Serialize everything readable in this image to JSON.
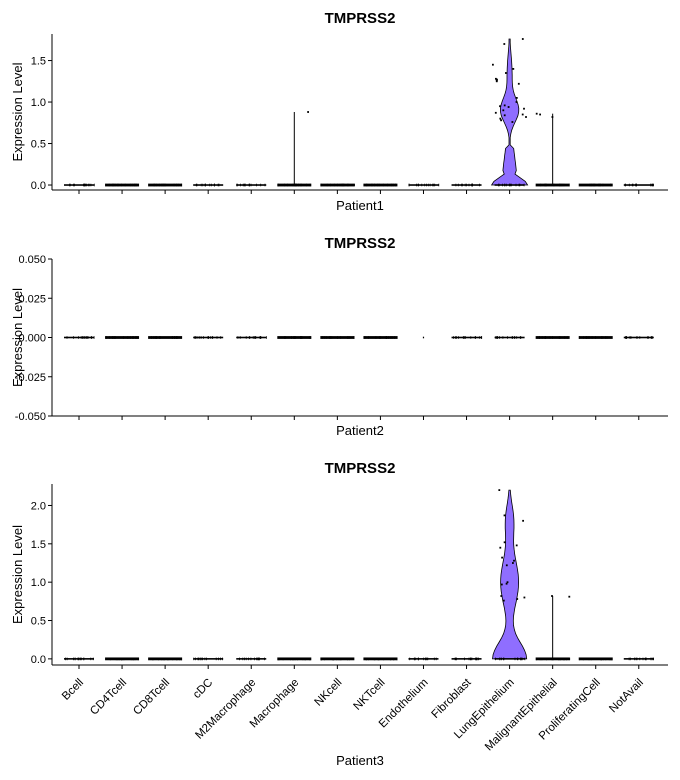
{
  "chart_data": {
    "type": "violin",
    "categories": [
      "Bcell",
      "CD4Tcell",
      "CD8Tcell",
      "cDC",
      "M2Macrophage",
      "Macrophage",
      "NKcell",
      "NKTcell",
      "Endothelium",
      "Fibroblast",
      "LungEpithelium",
      "MalignantEpithelial",
      "ProliferatingCell",
      "NotAvail"
    ],
    "fill_color": "#8F6EFF",
    "panels": [
      {
        "title": "TMPRSS2",
        "xlabel": "Patient1",
        "ylabel": "Expression Level",
        "ylim": [
          -0.06,
          1.82
        ],
        "yticks": [
          "0.0",
          "0.5",
          "1.0",
          "1.5"
        ],
        "ytick_values": [
          0,
          0.5,
          1.0,
          1.5
        ],
        "max_values": [
          0,
          0,
          0,
          0,
          0,
          0.88,
          0,
          0,
          0,
          0,
          1.76,
          0.86,
          0,
          0
        ],
        "nonzero_points": {
          "Macrophage": [
            0.88
          ],
          "LungEpithelium": [
            1.76,
            1.7,
            1.45,
            1.4,
            1.35,
            1.28,
            1.27,
            1.26,
            1.25,
            1.22,
            1.05,
            1.0,
            0.96,
            0.95,
            0.94,
            0.92,
            0.9,
            0.87,
            0.85,
            0.84,
            0.82,
            0.8,
            0.78,
            0.76
          ],
          "MalignantEpithelial": [
            0.86,
            0.85,
            0.82
          ]
        }
      },
      {
        "title": "TMPRSS2",
        "xlabel": "Patient2",
        "ylabel": "Expression Level",
        "ylim": [
          -0.05,
          0.05
        ],
        "yticks": [
          "-0.050",
          "-0.025",
          "0.000",
          "0.025",
          "0.050"
        ],
        "ytick_values": [
          -0.05,
          -0.025,
          0,
          0.025,
          0.05
        ],
        "max_values": [
          0,
          0,
          0,
          0,
          0,
          0,
          0,
          0,
          0,
          0,
          0,
          0,
          0,
          0
        ],
        "nonzero_points": {}
      },
      {
        "title": "TMPRSS2",
        "xlabel": "Patient3",
        "ylabel": "Expression Level",
        "ylim": [
          -0.08,
          2.28
        ],
        "yticks": [
          "0.0",
          "0.5",
          "1.0",
          "1.5",
          "2.0"
        ],
        "ytick_values": [
          0,
          0.5,
          1.0,
          1.5,
          2.0
        ],
        "max_values": [
          0,
          0,
          0,
          0,
          0,
          0,
          0,
          0,
          0,
          0,
          2.2,
          0.82,
          0,
          0
        ],
        "nonzero_points": {
          "LungEpithelium": [
            2.2,
            1.87,
            1.8,
            1.52,
            1.48,
            1.45,
            1.32,
            1.28,
            1.25,
            1.22,
            1.0,
            0.98,
            0.97,
            0.82,
            0.8,
            0.78,
            0.76
          ],
          "MalignantEpithelial": [
            0.82,
            0.81
          ]
        }
      }
    ]
  }
}
